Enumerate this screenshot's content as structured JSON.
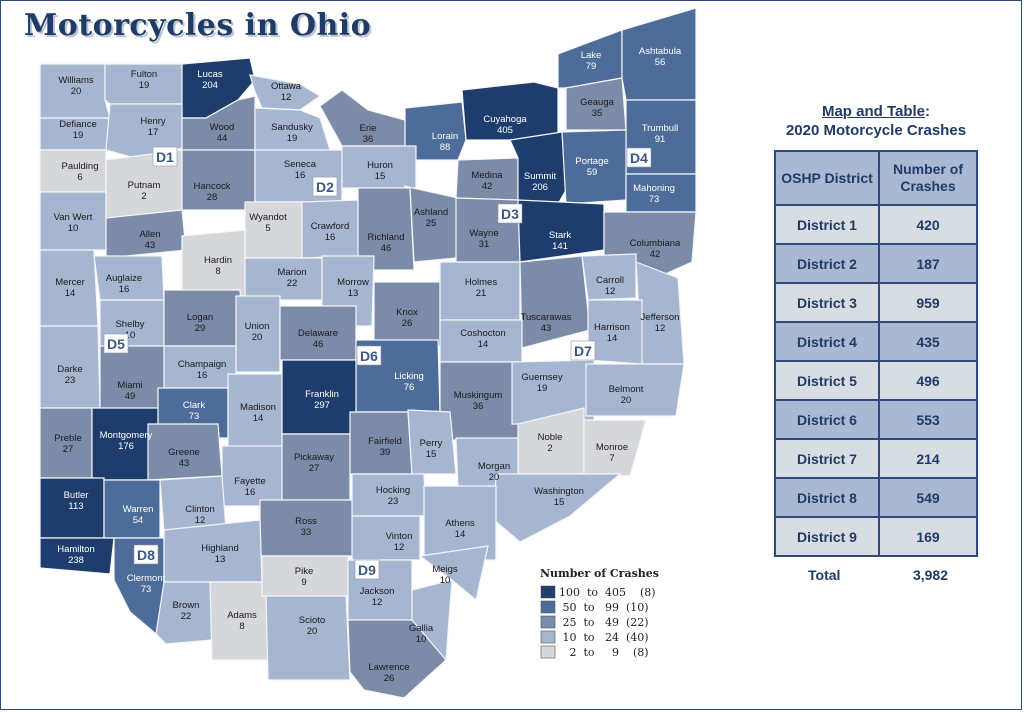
{
  "title": "Motorcycles in Ohio",
  "colors": {
    "c1": "#1f3d6c",
    "c2": "#4e6c99",
    "c3": "#7b8ba8",
    "c4": "#a7b6d0",
    "c5": "#d5d7db"
  },
  "counties": [
    {
      "name": "Williams",
      "count": "20"
    },
    {
      "name": "Fulton",
      "count": "19"
    },
    {
      "name": "Lucas",
      "count": "204"
    },
    {
      "name": "Ottawa",
      "count": "12"
    },
    {
      "name": "Defiance",
      "count": "19"
    },
    {
      "name": "Henry",
      "count": "17"
    },
    {
      "name": "Wood",
      "count": "44"
    },
    {
      "name": "Sandusky",
      "count": "19"
    },
    {
      "name": "Erie",
      "count": "36"
    },
    {
      "name": "Lorain",
      "count": "88"
    },
    {
      "name": "Cuyahoga",
      "count": "405"
    },
    {
      "name": "Lake",
      "count": "79"
    },
    {
      "name": "Geauga",
      "count": "35"
    },
    {
      "name": "Ashtabula",
      "count": "56"
    },
    {
      "name": "Trumbull",
      "count": "91"
    },
    {
      "name": "Paulding",
      "count": "6"
    },
    {
      "name": "Putnam",
      "count": "2"
    },
    {
      "name": "Hancock",
      "count": "28"
    },
    {
      "name": "Seneca",
      "count": "16"
    },
    {
      "name": "Huron",
      "count": "15"
    },
    {
      "name": "Medina",
      "count": "42"
    },
    {
      "name": "Summit",
      "count": "206"
    },
    {
      "name": "Portage",
      "count": "59"
    },
    {
      "name": "Mahoning",
      "count": "73"
    },
    {
      "name": "Van Wert",
      "count": "10"
    },
    {
      "name": "Allen",
      "count": "43"
    },
    {
      "name": "Wyandot",
      "count": "5"
    },
    {
      "name": "Crawford",
      "count": "16"
    },
    {
      "name": "Richland",
      "count": "46"
    },
    {
      "name": "Ashland",
      "count": "25"
    },
    {
      "name": "Wayne",
      "count": "31"
    },
    {
      "name": "Stark",
      "count": "141"
    },
    {
      "name": "Columbiana",
      "count": "42"
    },
    {
      "name": "Hardin",
      "count": "8"
    },
    {
      "name": "Mercer",
      "count": "14"
    },
    {
      "name": "Auglaize",
      "count": "16"
    },
    {
      "name": "Marion",
      "count": "22"
    },
    {
      "name": "Morrow",
      "count": "13"
    },
    {
      "name": "Knox",
      "count": "26"
    },
    {
      "name": "Holmes",
      "count": "21"
    },
    {
      "name": "Tuscarawas",
      "count": "43"
    },
    {
      "name": "Carroll",
      "count": "12"
    },
    {
      "name": "Jefferson",
      "count": "12"
    },
    {
      "name": "Shelby",
      "count": "10"
    },
    {
      "name": "Logan",
      "count": "29"
    },
    {
      "name": "Union",
      "count": "20"
    },
    {
      "name": "Delaware",
      "count": "46"
    },
    {
      "name": "Licking",
      "count": "76"
    },
    {
      "name": "Coshocton",
      "count": "14"
    },
    {
      "name": "Harrison",
      "count": "14"
    },
    {
      "name": "Darke",
      "count": "23"
    },
    {
      "name": "Champaign",
      "count": "16"
    },
    {
      "name": "Miami",
      "count": "49"
    },
    {
      "name": "Clark",
      "count": "73"
    },
    {
      "name": "Madison",
      "count": "14"
    },
    {
      "name": "Franklin",
      "count": "297"
    },
    {
      "name": "Muskingum",
      "count": "36"
    },
    {
      "name": "Guernsey",
      "count": "19"
    },
    {
      "name": "Belmont",
      "count": "20"
    },
    {
      "name": "Preble",
      "count": "27"
    },
    {
      "name": "Montgomery",
      "count": "176"
    },
    {
      "name": "Greene",
      "count": "43"
    },
    {
      "name": "Fayette",
      "count": "16"
    },
    {
      "name": "Pickaway",
      "count": "27"
    },
    {
      "name": "Fairfield",
      "count": "39"
    },
    {
      "name": "Perry",
      "count": "15"
    },
    {
      "name": "Morgan",
      "count": "20"
    },
    {
      "name": "Noble",
      "count": "2"
    },
    {
      "name": "Monroe",
      "count": "7"
    },
    {
      "name": "Washington",
      "count": "15"
    },
    {
      "name": "Butler",
      "count": "113"
    },
    {
      "name": "Warren",
      "count": "54"
    },
    {
      "name": "Clinton",
      "count": "12"
    },
    {
      "name": "Ross",
      "count": "33"
    },
    {
      "name": "Hocking",
      "count": "23"
    },
    {
      "name": "Vinton",
      "count": "12"
    },
    {
      "name": "Athens",
      "count": "14"
    },
    {
      "name": "Hamilton",
      "count": "238"
    },
    {
      "name": "Clermont",
      "count": "73"
    },
    {
      "name": "Highland",
      "count": "13"
    },
    {
      "name": "Brown",
      "count": "22"
    },
    {
      "name": "Adams",
      "count": "8"
    },
    {
      "name": "Pike",
      "count": "9"
    },
    {
      "name": "Scioto",
      "count": "20"
    },
    {
      "name": "Jackson",
      "count": "12"
    },
    {
      "name": "Gallia",
      "count": "10"
    },
    {
      "name": "Meigs",
      "count": "10"
    },
    {
      "name": "Lawrence",
      "count": "26"
    }
  ],
  "district_labels": [
    "D1",
    "D2",
    "D3",
    "D4",
    "D5",
    "D6",
    "D7",
    "D8",
    "D9"
  ],
  "legend": {
    "title": "Number of Crashes",
    "items": [
      {
        "text": "100  to  405    (8)"
      },
      {
        "text": " 50  to   99  (10)"
      },
      {
        "text": " 25  to   49  (22)"
      },
      {
        "text": " 10  to   24  (40)"
      },
      {
        "text": "   2  to     9    (8)"
      }
    ]
  },
  "table": {
    "title_line1": "Map and Table",
    "title_colon": ":",
    "title_line2": "2020 Motorcycle Crashes",
    "col1_header": "OSHP District",
    "col2_header": "Number of Crashes",
    "rows": [
      {
        "district": "District 1",
        "crashes": "420"
      },
      {
        "district": "District 2",
        "crashes": "187"
      },
      {
        "district": "District 3",
        "crashes": "959"
      },
      {
        "district": "District 4",
        "crashes": "435"
      },
      {
        "district": "District 5",
        "crashes": "496"
      },
      {
        "district": "District 6",
        "crashes": "553"
      },
      {
        "district": "District 7",
        "crashes": "214"
      },
      {
        "district": "District 8",
        "crashes": "549"
      },
      {
        "district": "District 9",
        "crashes": "169"
      }
    ],
    "total_label": "Total",
    "total_value": "3,982"
  }
}
